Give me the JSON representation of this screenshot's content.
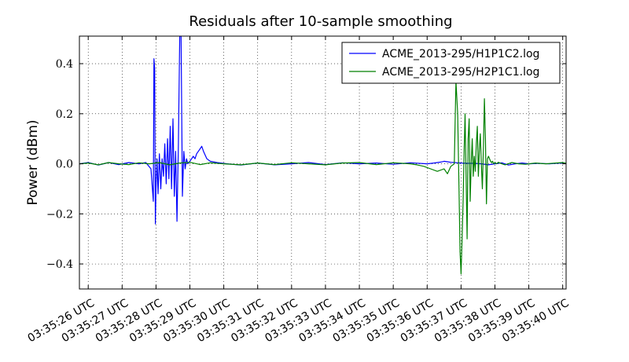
{
  "chart_data": {
    "type": "line",
    "title": "Residuals after 10-sample smoothing",
    "xlabel": "",
    "ylabel": "Power (dBm)",
    "xlim": [
      25.74,
      40.1
    ],
    "ylim": [
      -0.5,
      0.51
    ],
    "x_ticks": [
      26,
      27,
      28,
      29,
      30,
      31,
      32,
      33,
      34,
      35,
      36,
      37,
      38,
      39,
      40
    ],
    "x_tick_labels": [
      "03:35:26 UTC",
      "03:35:27 UTC",
      "03:35:28 UTC",
      "03:35:29 UTC",
      "03:35:30 UTC",
      "03:35:31 UTC",
      "03:35:32 UTC",
      "03:35:33 UTC",
      "03:35:34 UTC",
      "03:35:35 UTC",
      "03:35:36 UTC",
      "03:35:37 UTC",
      "03:35:38 UTC",
      "03:35:39 UTC",
      "03:35:40 UTC"
    ],
    "y_ticks": [
      -0.4,
      -0.2,
      0.0,
      0.2,
      0.4
    ],
    "y_tick_labels": [
      "−0.4",
      "−0.2",
      "0.0",
      "0.2",
      "0.4"
    ],
    "grid": true,
    "legend_position": "top-right",
    "series": [
      {
        "name": "ACME_2013-295/H1P1C2.log",
        "color": "#0000ff",
        "x": [
          25.74,
          26.0,
          26.3,
          26.6,
          26.9,
          27.2,
          27.5,
          27.7,
          27.85,
          27.92,
          27.94,
          27.96,
          27.98,
          28.0,
          28.03,
          28.06,
          28.1,
          28.14,
          28.18,
          28.22,
          28.26,
          28.3,
          28.34,
          28.38,
          28.42,
          28.46,
          28.5,
          28.54,
          28.58,
          28.62,
          28.66,
          28.7,
          28.74,
          28.78,
          28.82,
          28.86,
          28.9,
          28.94,
          29.0,
          29.05,
          29.1,
          29.15,
          29.2,
          29.25,
          29.3,
          29.35,
          29.4,
          29.5,
          29.6,
          29.8,
          30.1,
          30.5,
          31.0,
          31.5,
          32.0,
          32.5,
          33.0,
          33.5,
          34.0,
          34.5,
          35.0,
          35.5,
          36.0,
          36.2,
          36.4,
          36.5,
          36.6,
          36.7,
          36.8,
          36.9,
          37.0,
          37.2,
          37.4,
          37.6,
          37.8,
          38.0,
          38.2,
          38.4,
          38.6,
          38.8,
          39.0,
          39.3,
          39.6,
          39.8,
          40.0,
          40.1
        ],
        "y": [
          0.0,
          0.005,
          -0.005,
          0.005,
          -0.003,
          0.005,
          0.0,
          0.005,
          -0.02,
          -0.15,
          0.42,
          0.38,
          -0.24,
          -0.1,
          0.02,
          -0.12,
          0.04,
          -0.1,
          0.02,
          -0.05,
          0.08,
          -0.08,
          0.1,
          -0.06,
          0.15,
          -0.1,
          0.18,
          -0.13,
          0.05,
          -0.23,
          0.08,
          0.51,
          0.51,
          -0.13,
          0.05,
          -0.02,
          0.02,
          0.0,
          0.01,
          0.02,
          0.03,
          0.02,
          0.04,
          0.05,
          0.06,
          0.07,
          0.05,
          0.02,
          0.01,
          0.005,
          0.0,
          -0.005,
          0.003,
          -0.004,
          0.0,
          0.005,
          -0.003,
          0.004,
          0.0,
          0.003,
          -0.002,
          0.004,
          0.0,
          0.003,
          0.007,
          0.01,
          0.008,
          0.006,
          0.005,
          0.004,
          0.003,
          0.002,
          0.002,
          0.0,
          -0.004,
          0.0,
          0.004,
          -0.005,
          0.0,
          0.003,
          0.0,
          0.002,
          0.0,
          0.002,
          0.003,
          0.0
        ]
      },
      {
        "name": "ACME_2013-295/H2P1C1.log",
        "color": "#008000",
        "x": [
          25.74,
          26.0,
          26.3,
          26.6,
          26.9,
          27.2,
          27.5,
          27.8,
          28.1,
          28.4,
          28.7,
          29.0,
          29.3,
          29.6,
          30.0,
          30.5,
          31.0,
          31.5,
          32.0,
          32.5,
          33.0,
          33.5,
          34.0,
          34.5,
          35.0,
          35.5,
          35.7,
          35.9,
          36.1,
          36.3,
          36.5,
          36.6,
          36.7,
          36.8,
          36.85,
          36.9,
          36.94,
          36.97,
          37.0,
          37.03,
          37.06,
          37.09,
          37.12,
          37.15,
          37.18,
          37.21,
          37.24,
          37.27,
          37.3,
          37.33,
          37.36,
          37.39,
          37.42,
          37.45,
          37.48,
          37.51,
          37.54,
          37.57,
          37.6,
          37.63,
          37.66,
          37.69,
          37.72,
          37.75,
          37.78,
          37.81,
          37.84,
          37.87,
          37.9,
          37.93,
          37.96,
          38.0,
          38.05,
          38.1,
          38.2,
          38.3,
          38.5,
          38.7,
          38.9,
          39.0,
          39.2,
          39.5,
          39.8,
          40.0,
          40.1
        ],
        "y": [
          0.0,
          0.003,
          -0.004,
          0.005,
          0.0,
          -0.003,
          0.004,
          0.0,
          0.005,
          -0.004,
          0.003,
          0.006,
          -0.003,
          0.004,
          0.0,
          -0.004,
          0.003,
          -0.003,
          0.004,
          0.0,
          -0.004,
          0.003,
          0.005,
          -0.003,
          0.004,
          0.0,
          -0.004,
          -0.01,
          -0.02,
          -0.03,
          -0.02,
          -0.04,
          -0.01,
          0.0,
          0.33,
          0.2,
          -0.1,
          -0.35,
          -0.44,
          -0.3,
          -0.15,
          0.05,
          0.2,
          -0.05,
          -0.3,
          0.1,
          0.18,
          -0.15,
          0.0,
          0.1,
          -0.05,
          0.03,
          -0.03,
          0.08,
          0.15,
          -0.05,
          0.05,
          0.12,
          0.0,
          -0.1,
          0.06,
          0.26,
          0.1,
          -0.16,
          0.02,
          0.03,
          0.02,
          0.01,
          0.005,
          0.01,
          0.0,
          0.005,
          0.0,
          0.006,
          0.0,
          -0.004,
          0.005,
          0.0,
          -0.002,
          0.0,
          0.003,
          0.0,
          0.003,
          0.005,
          0.002
        ]
      }
    ]
  }
}
